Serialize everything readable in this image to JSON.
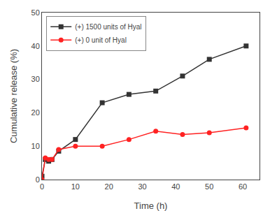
{
  "chart_data": {
    "type": "line",
    "x": [
      0,
      1,
      2,
      3,
      5,
      10,
      18,
      26,
      34,
      42,
      50,
      61
    ],
    "series": [
      {
        "name": "(+) 1500 units of Hyal",
        "color": "#333333",
        "marker": "square",
        "values": [
          1,
          6,
          5.5,
          6,
          8.5,
          12,
          23,
          25.5,
          26.5,
          31,
          36,
          40
        ]
      },
      {
        "name": "(+) 0 unit of Hyal",
        "color": "#ff2222",
        "marker": "circle",
        "values": [
          0,
          6.5,
          6,
          6,
          9,
          10,
          10,
          12,
          14.5,
          13.5,
          14,
          15.5
        ]
      }
    ],
    "xlabel": "Time (h)",
    "ylabel": "Cumulative release (%)",
    "xlim": [
      0,
      65
    ],
    "ylim": [
      0,
      50
    ],
    "xticks": [
      0,
      10,
      20,
      30,
      40,
      50,
      60
    ],
    "yticks": [
      0,
      10,
      20,
      30,
      40,
      50
    ],
    "grid": false,
    "legend": "upper left"
  }
}
